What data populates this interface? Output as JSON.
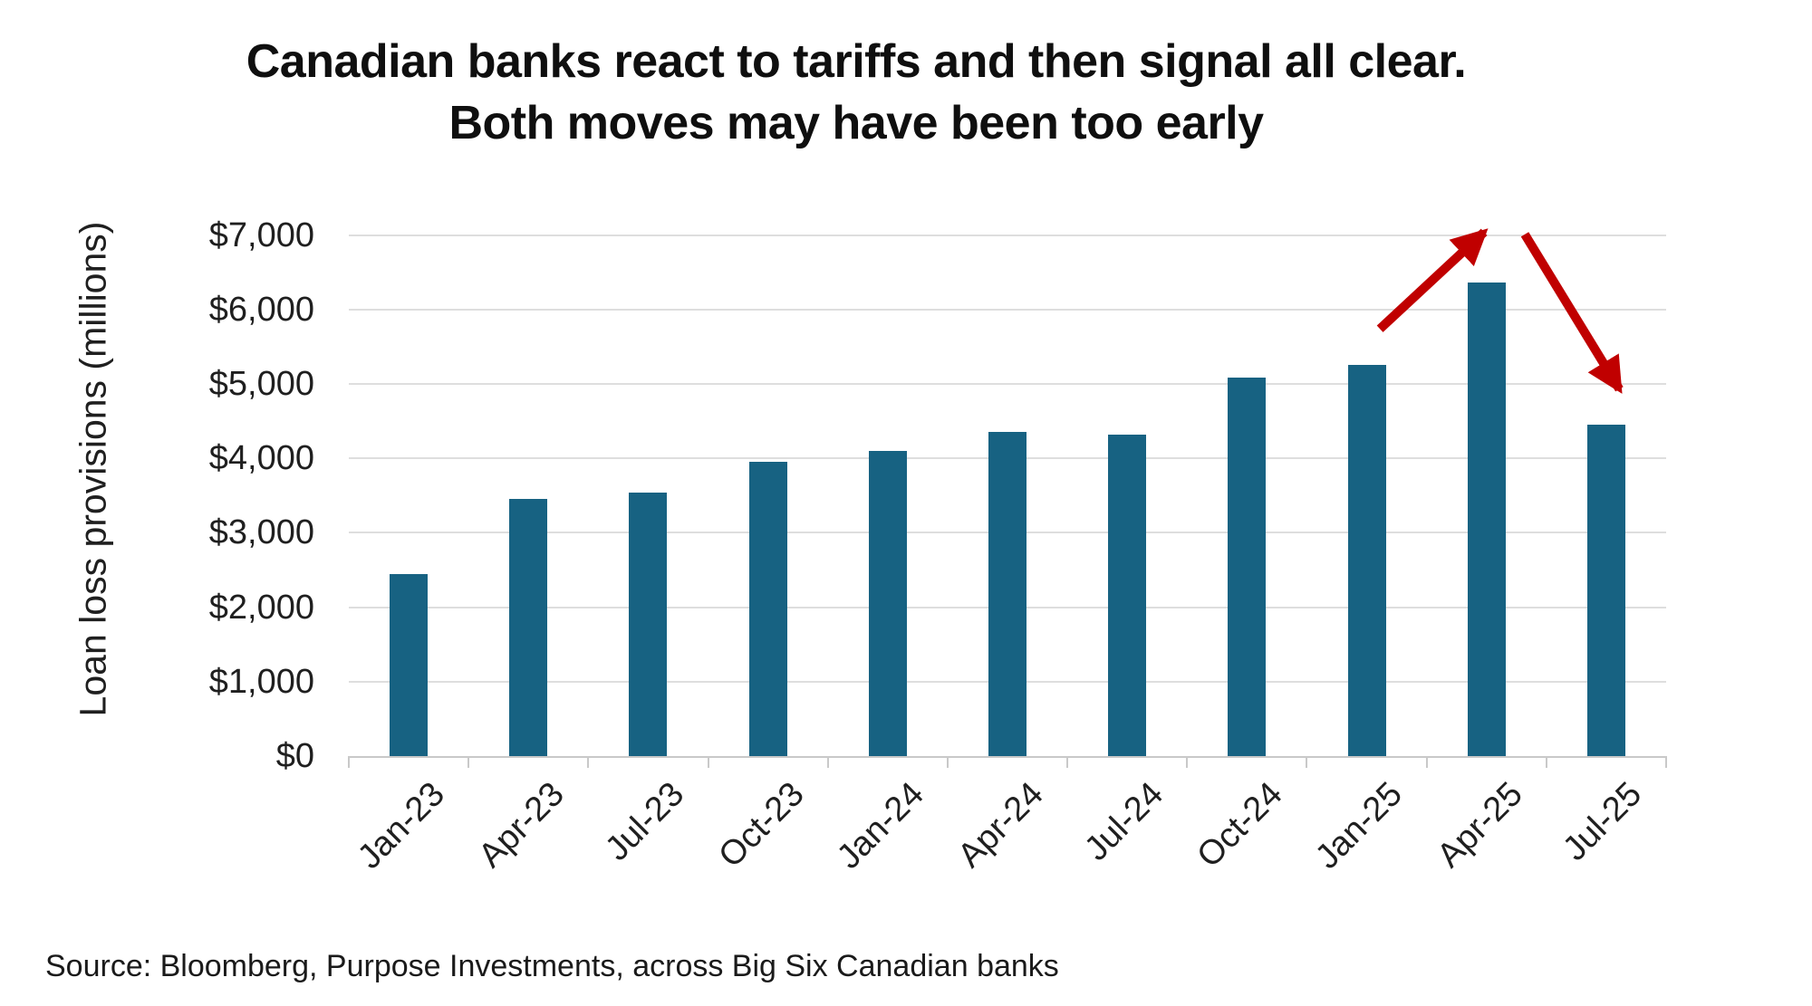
{
  "title": {
    "line1": "Canadian banks react to tariffs and then signal all clear.",
    "line2": "Both moves may have been too early"
  },
  "source_note": "Source: Bloomberg, Purpose Investments, across Big Six Canadian banks",
  "colors": {
    "bar": "#176282",
    "arrow": "#C00000",
    "gridline": "#DEDEDE",
    "axis": "#C9C9C9",
    "title_text": "#0F0F0F",
    "label_text": "#1F1F1F"
  },
  "chart_data": {
    "type": "bar",
    "title": "Canadian banks react to tariffs and then signal all clear. Both moves may have been too early",
    "ylabel": "Loan loss provisions (millions)",
    "xlabel": "",
    "categories": [
      "Jan-23",
      "Apr-23",
      "Jul-23",
      "Oct-23",
      "Jan-24",
      "Apr-24",
      "Jul-24",
      "Oct-24",
      "Jan-25",
      "Apr-25",
      "Jul-25"
    ],
    "values": [
      2450,
      3450,
      3540,
      3950,
      4100,
      4350,
      4320,
      5080,
      5260,
      6360,
      4450
    ],
    "ylim": [
      0,
      7000
    ],
    "ytick_step": 1000,
    "ytick_labels": [
      "$0",
      "$1,000",
      "$2,000",
      "$3,000",
      "$4,000",
      "$5,000",
      "$6,000",
      "$7,000"
    ],
    "grid": "horizontal",
    "legend": "none",
    "annotations": [
      {
        "name": "surge-arrow",
        "shape": "arrow",
        "from": {
          "x": 8.61,
          "y": 5740
        },
        "to": {
          "x": 9.48,
          "y": 7040
        }
      },
      {
        "name": "retreat-arrow",
        "shape": "arrow",
        "from": {
          "x": 9.82,
          "y": 7010
        },
        "to": {
          "x": 10.61,
          "y": 4930
        }
      }
    ]
  }
}
